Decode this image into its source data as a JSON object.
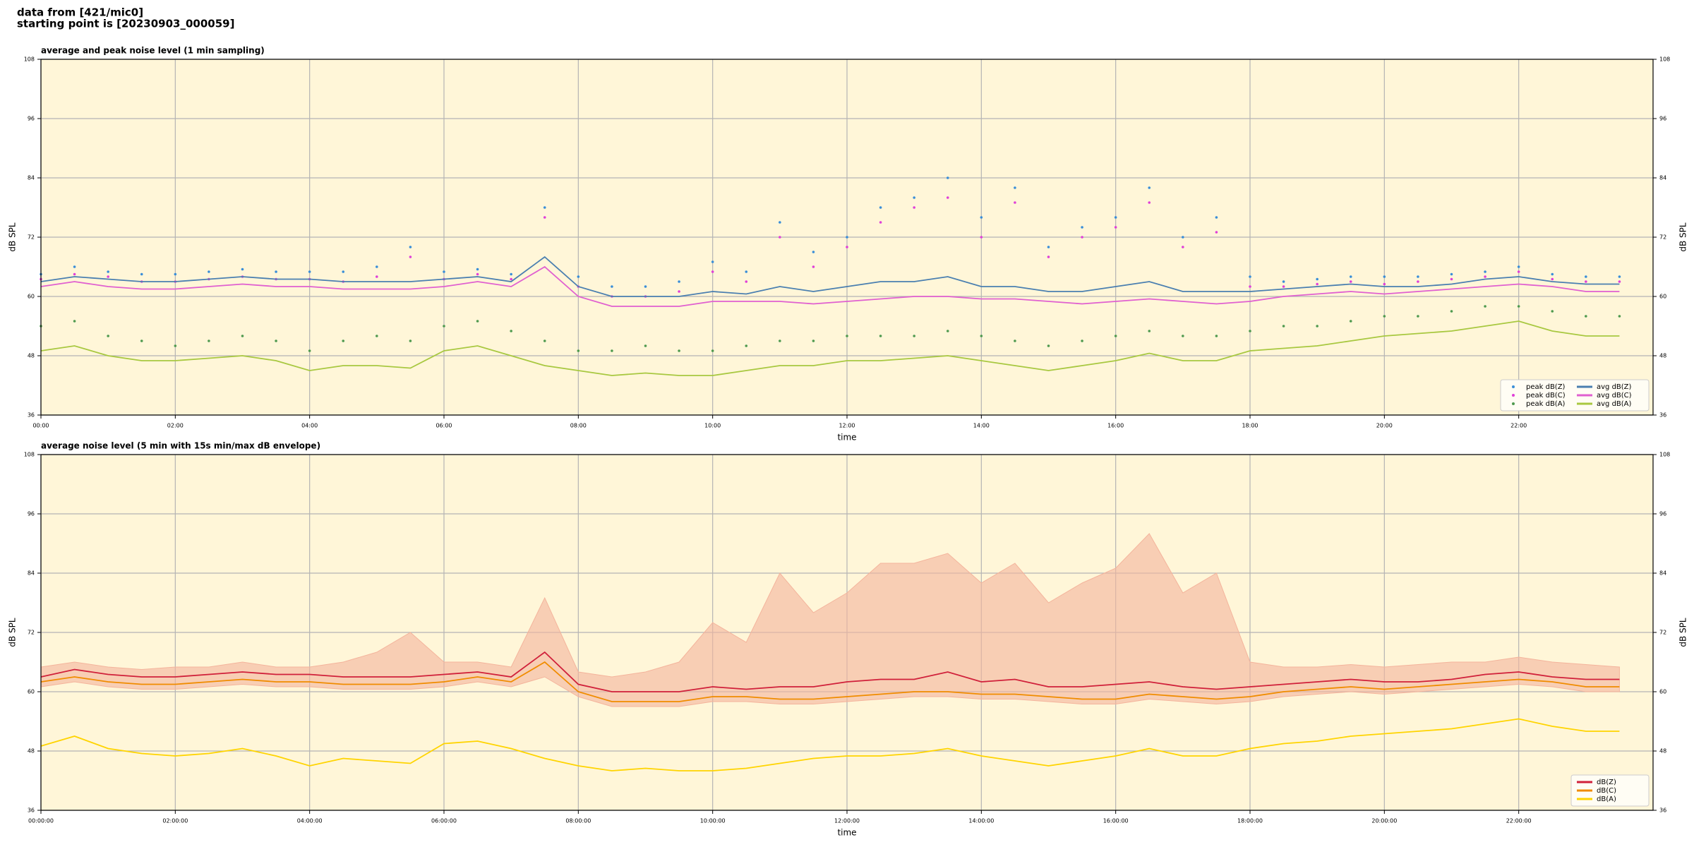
{
  "header": {
    "line1": "data from [421/mic0]",
    "line2": "starting point is [20230903_000059]"
  },
  "chart_data": [
    {
      "type": "line",
      "title": "average and peak noise level (1 min sampling)",
      "xlabel": "time",
      "ylabel": "dB SPL",
      "xlim": [
        0,
        24
      ],
      "ylim": [
        36,
        108
      ],
      "yticks": [
        36,
        48,
        60,
        72,
        84,
        96,
        108
      ],
      "grid": true,
      "legend": "lower right",
      "legend_columns": 2,
      "xticks": [
        {
          "value": 0,
          "label": "00:00"
        },
        {
          "value": 2,
          "label": "02:00"
        },
        {
          "value": 4,
          "label": "04:00"
        },
        {
          "value": 6,
          "label": "06:00"
        },
        {
          "value": 8,
          "label": "08:00"
        },
        {
          "value": 10,
          "label": "10:00"
        },
        {
          "value": 12,
          "label": "12:00"
        },
        {
          "value": 14,
          "label": "14:00"
        },
        {
          "value": 16,
          "label": "16:00"
        },
        {
          "value": 18,
          "label": "18:00"
        },
        {
          "value": 20,
          "label": "20:00"
        },
        {
          "value": 22,
          "label": "22:00"
        }
      ],
      "x": [
        0,
        0.5,
        1,
        1.5,
        2,
        2.5,
        3,
        3.5,
        4,
        4.5,
        5,
        5.5,
        6,
        6.5,
        7,
        7.5,
        8,
        8.5,
        9,
        9.5,
        10,
        10.5,
        11,
        11.5,
        12,
        12.5,
        13,
        13.5,
        14,
        14.5,
        15,
        15.5,
        16,
        16.5,
        17,
        17.5,
        18,
        18.5,
        19,
        19.5,
        20,
        20.5,
        21,
        21.5,
        22,
        22.5,
        23,
        23.5
      ],
      "series": [
        {
          "name": "peak dB(Z)",
          "style": "points",
          "color": "#3a8ed8",
          "values": [
            64.5,
            66,
            65,
            64.5,
            64.5,
            65,
            65.5,
            65,
            65,
            65,
            66,
            70,
            65,
            65.5,
            64.5,
            78,
            64,
            62,
            62,
            63,
            67,
            65,
            75,
            69,
            72,
            78,
            80,
            84,
            76,
            82,
            70,
            74,
            76,
            82,
            72,
            76,
            64,
            63,
            63.5,
            64,
            64,
            64,
            64.5,
            65,
            66,
            64.5,
            64,
            64
          ]
        },
        {
          "name": "peak dB(C)",
          "style": "points",
          "color": "#e040d8",
          "values": [
            63.5,
            64.5,
            64,
            63,
            63,
            63.5,
            64,
            63.5,
            63.5,
            63,
            64,
            68,
            63.5,
            64.5,
            63.5,
            76,
            62,
            60,
            60,
            61,
            65,
            63,
            72,
            66,
            70,
            75,
            78,
            80,
            72,
            79,
            68,
            72,
            74,
            79,
            70,
            73,
            62,
            62,
            62.5,
            63,
            62.5,
            63,
            63.5,
            64,
            65,
            63.5,
            63,
            63
          ]
        },
        {
          "name": "peak dB(A)",
          "style": "points",
          "color": "#4f9a4f",
          "values": [
            54,
            55,
            52,
            51,
            50,
            51,
            52,
            51,
            49,
            51,
            52,
            51,
            54,
            55,
            53,
            51,
            49,
            49,
            50,
            49,
            49,
            50,
            51,
            51,
            52,
            52,
            52,
            53,
            52,
            51,
            50,
            51,
            52,
            53,
            52,
            52,
            53,
            54,
            54,
            55,
            56,
            56,
            57,
            58,
            58,
            57,
            56,
            56
          ]
        },
        {
          "name": "avg dB(Z)",
          "style": "line",
          "color": "#4a7fb0",
          "values": [
            63,
            64,
            63.5,
            63,
            63,
            63.5,
            64,
            63.5,
            63.5,
            63,
            63,
            63,
            63.5,
            64,
            63,
            68,
            62,
            60,
            60,
            60,
            61,
            60.5,
            62,
            61,
            62,
            63,
            63,
            64,
            62,
            62,
            61,
            61,
            62,
            63,
            61,
            61,
            61,
            61.5,
            62,
            62.5,
            62,
            62,
            62.5,
            63.5,
            64,
            63,
            62.5,
            62.5
          ]
        },
        {
          "name": "avg dB(C)",
          "style": "line",
          "color": "#e060d0",
          "values": [
            62,
            63,
            62,
            61.5,
            61.5,
            62,
            62.5,
            62,
            62,
            61.5,
            61.5,
            61.5,
            62,
            63,
            62,
            66,
            60,
            58,
            58,
            58,
            59,
            59,
            59,
            58.5,
            59,
            59.5,
            60,
            60,
            59.5,
            59.5,
            59,
            58.5,
            59,
            59.5,
            59,
            58.5,
            59,
            60,
            60.5,
            61,
            60.5,
            61,
            61.5,
            62,
            62.5,
            62,
            61,
            61
          ]
        },
        {
          "name": "avg dB(A)",
          "style": "line",
          "color": "#a8c840",
          "values": [
            49,
            50,
            48,
            47,
            47,
            47.5,
            48,
            47,
            45,
            46,
            46,
            45.5,
            49,
            50,
            48,
            46,
            45,
            44,
            44.5,
            44,
            44,
            45,
            46,
            46,
            47,
            47,
            47.5,
            48,
            47,
            46,
            45,
            46,
            47,
            48.5,
            47,
            47,
            49,
            49.5,
            50,
            51,
            52,
            52.5,
            53,
            54,
            55,
            53,
            52,
            52
          ]
        }
      ]
    },
    {
      "type": "line",
      "title": "average noise level (5 min with 15s min/max dB envelope)",
      "xlabel": "time",
      "ylabel": "dB SPL",
      "xlim": [
        0,
        24
      ],
      "ylim": [
        36,
        108
      ],
      "yticks": [
        36,
        48,
        60,
        72,
        84,
        96,
        108
      ],
      "grid": true,
      "legend": "lower right",
      "legend_columns": 1,
      "xticks": [
        {
          "value": 0,
          "label": "00:00:00"
        },
        {
          "value": 2,
          "label": "02:00:00"
        },
        {
          "value": 4,
          "label": "04:00:00"
        },
        {
          "value": 6,
          "label": "06:00:00"
        },
        {
          "value": 8,
          "label": "08:00:00"
        },
        {
          "value": 10,
          "label": "10:00:00"
        },
        {
          "value": 12,
          "label": "12:00:00"
        },
        {
          "value": 14,
          "label": "14:00:00"
        },
        {
          "value": 16,
          "label": "16:00:00"
        },
        {
          "value": 18,
          "label": "18:00:00"
        },
        {
          "value": 20,
          "label": "20:00:00"
        },
        {
          "value": 22,
          "label": "22:00:00"
        }
      ],
      "x": [
        0,
        0.5,
        1,
        1.5,
        2,
        2.5,
        3,
        3.5,
        4,
        4.5,
        5,
        5.5,
        6,
        6.5,
        7,
        7.5,
        8,
        8.5,
        9,
        9.5,
        10,
        10.5,
        11,
        11.5,
        12,
        12.5,
        13,
        13.5,
        14,
        14.5,
        15,
        15.5,
        16,
        16.5,
        17,
        17.5,
        18,
        18.5,
        19,
        19.5,
        20,
        20.5,
        21,
        21.5,
        22,
        22.5,
        23,
        23.5
      ],
      "envelope": {
        "color": "#f4b49c",
        "max": [
          65,
          66,
          65,
          64.5,
          65,
          65,
          66,
          65,
          65,
          66,
          68,
          72,
          66,
          66,
          65,
          79,
          64,
          63,
          64,
          66,
          74,
          70,
          84,
          76,
          80,
          86,
          86,
          88,
          82,
          86,
          78,
          82,
          85,
          92,
          80,
          84,
          66,
          65,
          65,
          65.5,
          65,
          65.5,
          66,
          66,
          67,
          66,
          65.5,
          65
        ],
        "min": [
          61,
          62,
          61,
          60.5,
          60.5,
          61,
          61.5,
          61,
          61,
          60.5,
          60.5,
          60.5,
          61,
          62,
          61,
          63,
          59,
          57,
          57,
          57,
          58,
          58,
          57.5,
          57.5,
          58,
          58.5,
          59,
          59,
          58.5,
          58.5,
          58,
          57.5,
          57.5,
          58.5,
          58,
          57.5,
          58,
          59,
          59.5,
          60,
          59.5,
          60,
          60.5,
          61,
          61.5,
          61,
          60,
          60
        ]
      },
      "series": [
        {
          "name": "dB(Z)",
          "style": "line",
          "color": "#d0203a",
          "values": [
            63,
            64.5,
            63.5,
            63,
            63,
            63.5,
            64,
            63.5,
            63.5,
            63,
            63,
            63,
            63.5,
            64,
            63,
            68,
            61.5,
            60,
            60,
            60,
            61,
            60.5,
            61,
            61,
            62,
            62.5,
            62.5,
            64,
            62,
            62.5,
            61,
            61,
            61.5,
            62,
            61,
            60.5,
            61,
            61.5,
            62,
            62.5,
            62,
            62,
            62.5,
            63.5,
            64,
            63,
            62.5,
            62.5
          ]
        },
        {
          "name": "dB(C)",
          "style": "line",
          "color": "#f08c00",
          "values": [
            62,
            63,
            62,
            61.5,
            61.5,
            62,
            62.5,
            62,
            62,
            61.5,
            61.5,
            61.5,
            62,
            63,
            62,
            66,
            60,
            58,
            58,
            58,
            59,
            59,
            58.5,
            58.5,
            59,
            59.5,
            60,
            60,
            59.5,
            59.5,
            59,
            58.5,
            58.5,
            59.5,
            59,
            58.5,
            59,
            60,
            60.5,
            61,
            60.5,
            61,
            61.5,
            62,
            62.5,
            62,
            61,
            61
          ]
        },
        {
          "name": "dB(A)",
          "style": "line",
          "color": "#ffd400",
          "values": [
            49,
            51,
            48.5,
            47.5,
            47,
            47.5,
            48.5,
            47,
            45,
            46.5,
            46,
            45.5,
            49.5,
            50,
            48.5,
            46.5,
            45,
            44,
            44.5,
            44,
            44,
            44.5,
            45.5,
            46.5,
            47,
            47,
            47.5,
            48.5,
            47,
            46,
            45,
            46,
            47,
            48.5,
            47,
            47,
            48.5,
            49.5,
            50,
            51,
            51.5,
            52,
            52.5,
            53.5,
            54.5,
            53,
            52,
            52
          ]
        }
      ]
    }
  ]
}
